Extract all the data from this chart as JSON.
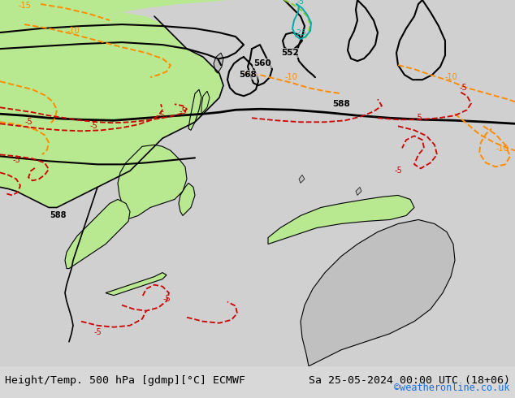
{
  "title_left": "Height/Temp. 500 hPa [gdmp][°C] ECMWF",
  "title_right": "Sa 25-05-2024 00:00 UTC (18+06)",
  "credit": "©weatheronline.co.uk",
  "bg_color": "#d8d8d8",
  "fig_width": 6.34,
  "fig_height": 4.9,
  "dpi": 100,
  "bottom_bar_color": "#e8e8e8",
  "title_fontsize": 9.5,
  "credit_color": "#1a6fde",
  "contour_black_color": "#000000",
  "contour_orange_color": "#ff8c00",
  "contour_red_color": "#cc0000",
  "contour_green_color": "#44aa00",
  "contour_cyan_color": "#00aaaa"
}
